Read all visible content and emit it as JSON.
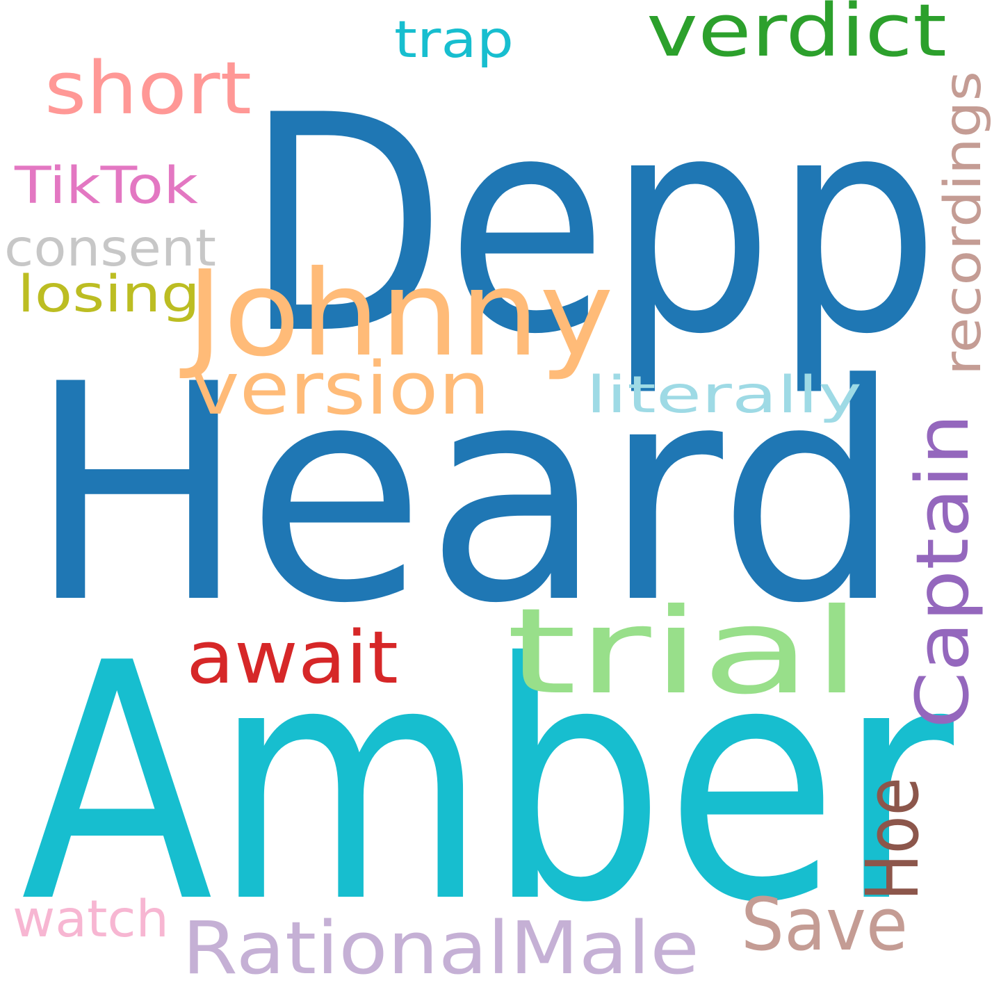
{
  "words": [
    {
      "id": "depp",
      "text": "Depp",
      "color": "#1f77b4"
    },
    {
      "id": "heard",
      "text": "Heard",
      "color": "#1f77b4"
    },
    {
      "id": "amber",
      "text": "Amber",
      "color": "#17becf"
    },
    {
      "id": "johnny",
      "text": "Johnny",
      "color": "#ffbb78"
    },
    {
      "id": "trial",
      "text": "trial",
      "color": "#98df8a"
    },
    {
      "id": "verdict",
      "text": "verdict",
      "color": "#2ca02c"
    },
    {
      "id": "short",
      "text": "short",
      "color": "#ff9896"
    },
    {
      "id": "trap",
      "text": "trap",
      "color": "#17becf"
    },
    {
      "id": "tiktok",
      "text": "TikTok",
      "color": "#e377c2"
    },
    {
      "id": "consent",
      "text": "consent",
      "color": "#c7c7c7"
    },
    {
      "id": "losing",
      "text": "losing",
      "color": "#bcbd22"
    },
    {
      "id": "version",
      "text": "version",
      "color": "#ffbb78"
    },
    {
      "id": "literally",
      "text": "literally",
      "color": "#9edae5"
    },
    {
      "id": "recordings",
      "text": "recordings",
      "color": "#c49c94"
    },
    {
      "id": "captain",
      "text": "Captain",
      "color": "#9467bd"
    },
    {
      "id": "await",
      "text": "await",
      "color": "#d62728"
    },
    {
      "id": "hoe",
      "text": "Hoe",
      "color": "#8c564b"
    },
    {
      "id": "save",
      "text": "Save",
      "color": "#c49c94"
    },
    {
      "id": "watch",
      "text": "watch",
      "color": "#f7b6d2"
    },
    {
      "id": "rationalmale",
      "text": "RationalMale",
      "color": "#c5b0d5"
    }
  ]
}
